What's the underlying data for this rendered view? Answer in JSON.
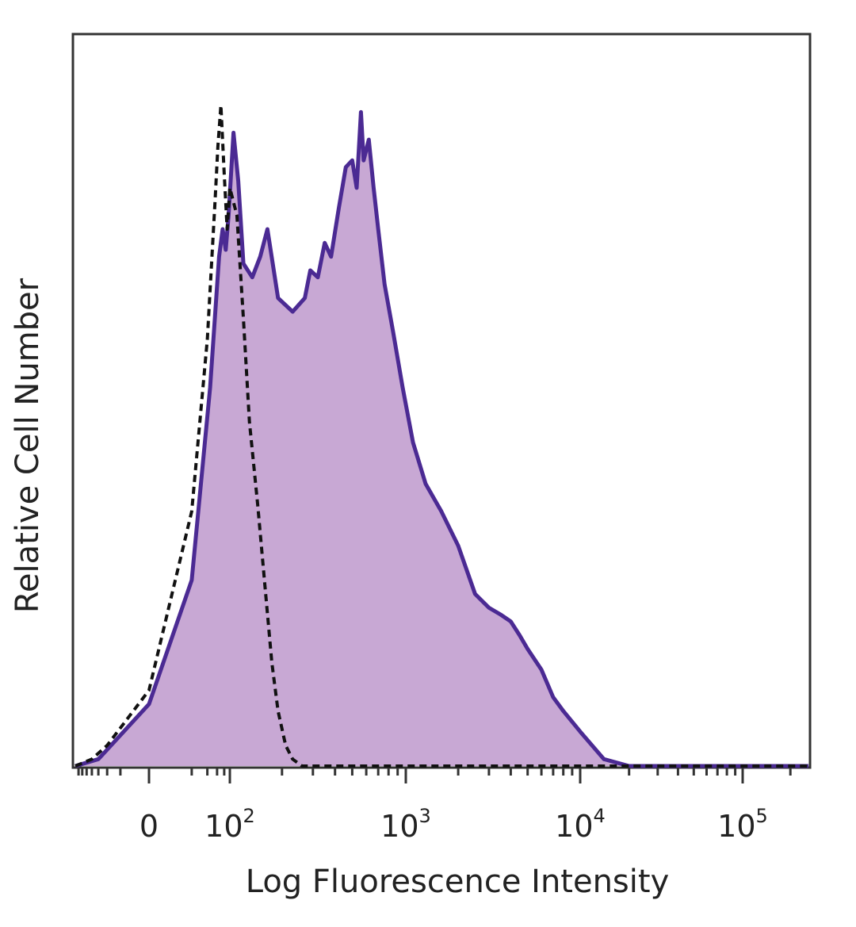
{
  "chart_data": {
    "type": "area",
    "xlabel": "Log Fluorescence Intensity",
    "ylabel": "Relative Cell Number",
    "x_scale": "biexponential",
    "xlim": [
      -80,
      260000
    ],
    "ylim": [
      0,
      100
    ],
    "grid": false,
    "legend": "none",
    "tick_labels": [
      {
        "value": 0,
        "base": "0",
        "exp": ""
      },
      {
        "value": 100,
        "base": "10",
        "exp": "2"
      },
      {
        "value": 1000,
        "base": "10",
        "exp": "3"
      },
      {
        "value": 10000,
        "base": "10",
        "exp": "4"
      },
      {
        "value": 100000,
        "base": "10",
        "exp": "5"
      }
    ],
    "series": [
      {
        "style": "filled",
        "color": "#4b2a93",
        "fill": "#c8a8d4",
        "x": [
          -80,
          -30,
          0,
          20,
          45,
          65,
          75,
          85,
          95,
          105,
          112,
          120,
          135,
          150,
          165,
          190,
          230,
          270,
          290,
          320,
          350,
          380,
          420,
          460,
          500,
          530,
          560,
          580,
          620,
          660,
          700,
          760,
          850,
          960,
          1100,
          1300,
          1600,
          2000,
          2500,
          3000,
          3500,
          4000,
          4500,
          5000,
          6000,
          7000,
          8000,
          10000,
          14000,
          20000,
          30000,
          60000,
          120000,
          260000
        ],
        "y": [
          0,
          1,
          9,
          27,
          55,
          74,
          78,
          75,
          80,
          92,
          85,
          73,
          71,
          74,
          78,
          68,
          66,
          68,
          72,
          71,
          76,
          74,
          81,
          87,
          88,
          84,
          95,
          88,
          91,
          84,
          78,
          70,
          63,
          55,
          47,
          41,
          37,
          32,
          25,
          23,
          22,
          21,
          19,
          17,
          14,
          10,
          8,
          5,
          1,
          0,
          0,
          0,
          0,
          0
        ]
      },
      {
        "style": "dashed",
        "color": "#111111",
        "x": [
          -80,
          -40,
          -20,
          0,
          20,
          40,
          55,
          62,
          70,
          80,
          90,
          100,
          110,
          120,
          130,
          145,
          160,
          175,
          190,
          210,
          230,
          260,
          300,
          400,
          1000,
          10000,
          260000
        ],
        "y": [
          0,
          1,
          3,
          11,
          37,
          62,
          82,
          90,
          96,
          86,
          78,
          84,
          80,
          65,
          50,
          38,
          26,
          15,
          8,
          3,
          1,
          0,
          0,
          0,
          0,
          0,
          0
        ]
      }
    ]
  }
}
